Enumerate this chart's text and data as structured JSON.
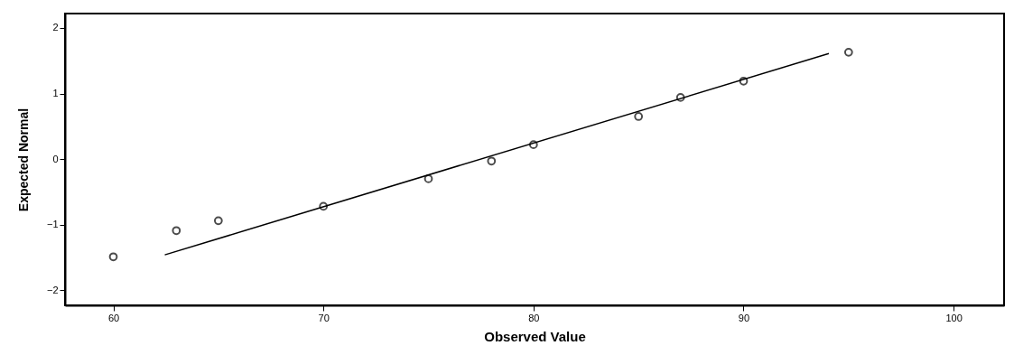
{
  "chart_data": {
    "type": "scatter",
    "xlabel": "Observed Value",
    "ylabel": "Expected Normal",
    "xlim": [
      57.7,
      102.4
    ],
    "ylim": [
      -2.23,
      2.22
    ],
    "xticks": [
      60,
      70,
      80,
      90,
      100
    ],
    "yticks": [
      -2,
      -1,
      0,
      1,
      2
    ],
    "grid": false,
    "series": [
      {
        "color": "#000000",
        "marker": "circle",
        "x": [
          60,
          63,
          65,
          70,
          75,
          78,
          80,
          85,
          87,
          90,
          95
        ],
        "values": [
          -1.49,
          -1.09,
          -0.94,
          -0.72,
          -0.3,
          -0.03,
          0.22,
          0.65,
          0.94,
          1.19,
          1.63
        ]
      },
      {
        "type": "line",
        "color": "#000000",
        "marker": "none",
        "x": [
          62.45,
          94.06
        ],
        "values": [
          -1.46,
          1.61
        ]
      }
    ]
  }
}
